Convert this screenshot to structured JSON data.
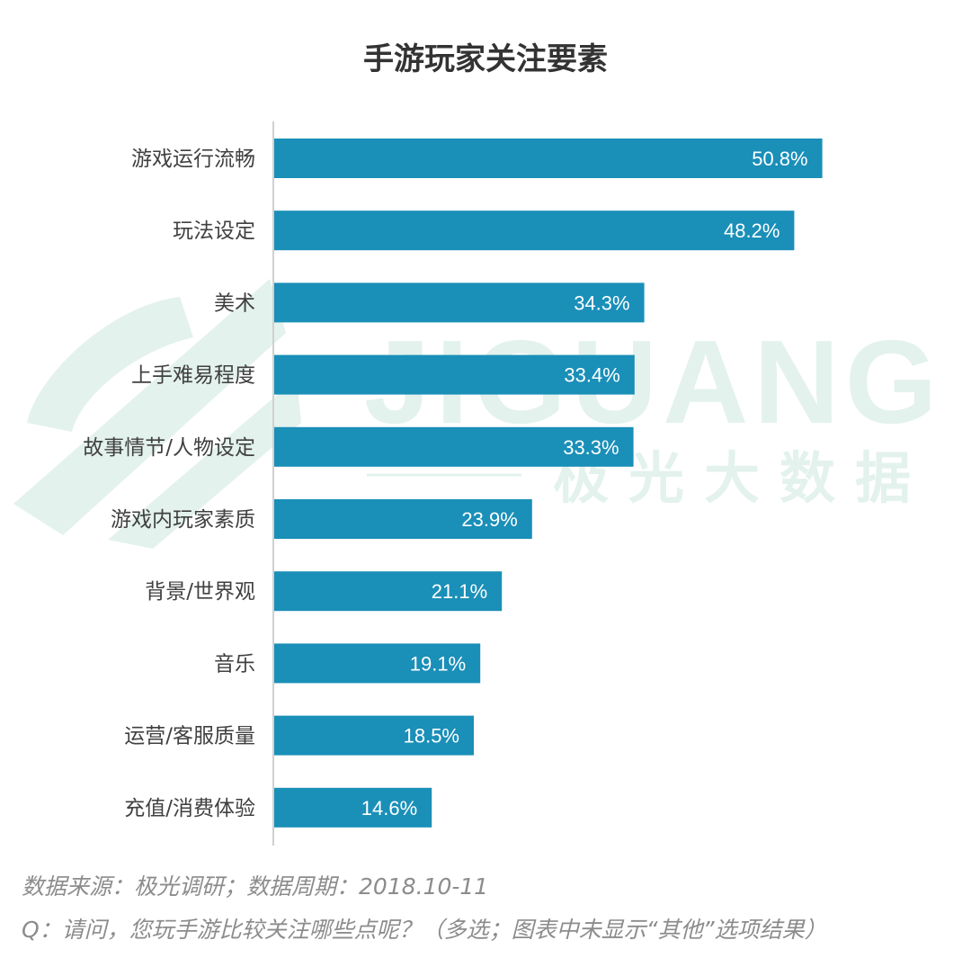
{
  "chart_data": {
    "type": "bar",
    "orientation": "horizontal",
    "title": "手游玩家关注要素",
    "categories": [
      "游戏运行流畅",
      "玩法设定",
      "美术",
      "上手难易程度",
      "故事情节/人物设定",
      "游戏内玩家素质",
      "背景/世界观",
      "音乐",
      "运营/客服质量",
      "充值/消费体验"
    ],
    "values": [
      50.8,
      48.2,
      34.3,
      33.4,
      33.3,
      23.9,
      21.1,
      19.1,
      18.5,
      14.6
    ],
    "value_labels": [
      "50.8%",
      "48.2%",
      "34.3%",
      "33.4%",
      "33.3%",
      "23.9%",
      "21.1%",
      "19.1%",
      "18.5%",
      "14.6%"
    ],
    "xlim": [
      0,
      60
    ],
    "grid": false,
    "bar_color": "#1a8fb8"
  },
  "watermark": {
    "brand": "JIGUANG",
    "brand_cn": "极光大数据",
    "color": "#e3f2ec"
  },
  "footer": {
    "source": "数据来源：极光调研；数据周期：2018.10-11",
    "question": "Q：请问，您玩手游比较关注哪些点呢？（多选；图表中未显示“其他”选项结果）"
  }
}
